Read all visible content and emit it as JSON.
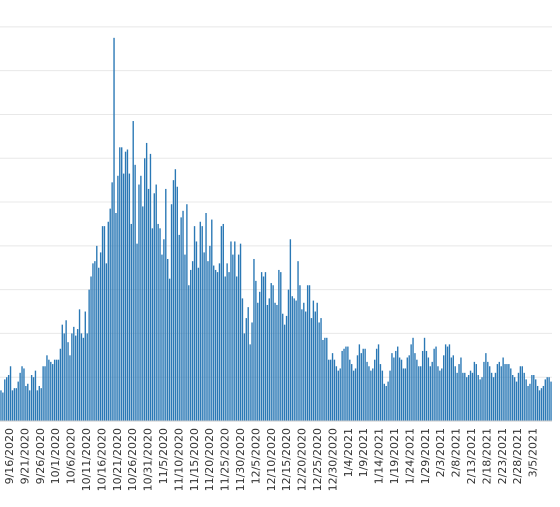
{
  "colors": {
    "bar": "#2a78b5",
    "grid": "#e8e8e8",
    "axis": "#c8c8c8",
    "label": "#333333",
    "background": "#ffffff"
  },
  "chart_data": {
    "type": "bar",
    "title": "",
    "xlabel": "",
    "ylabel": "",
    "ylim": [
      0,
      19
    ],
    "grid": true,
    "legend": "none",
    "x_start": "9/16/2020",
    "x_tick_labels": [
      "9/16/2020",
      "9/21/2020",
      "9/26/2020",
      "10/1/2020",
      "10/6/2020",
      "10/11/2020",
      "10/16/2020",
      "10/21/2020",
      "10/26/2020",
      "10/31/2020",
      "11/5/2020",
      "11/10/2020",
      "11/15/2020",
      "11/20/2020",
      "11/25/2020",
      "11/30/2020",
      "12/5/2020",
      "12/10/2020",
      "12/15/2020",
      "12/20/2020",
      "12/25/2020",
      "12/30/2020",
      "1/4/2021",
      "1/9/2021",
      "1/14/2021",
      "1/19/2021",
      "1/24/2021",
      "1/29/2021",
      "2/3/2021",
      "2/8/2021",
      "2/13/2021",
      "2/18/2021",
      "2/23/2021",
      "2/28/2021",
      "3/5/2021"
    ],
    "values": [
      1.4,
      1.3,
      1.9,
      2.0,
      2.1,
      2.5,
      1.4,
      1.5,
      1.5,
      1.8,
      2.2,
      2.5,
      2.4,
      1.6,
      1.7,
      1.4,
      2.1,
      2.0,
      2.3,
      1.4,
      1.6,
      1.5,
      2.5,
      2.5,
      3.0,
      2.8,
      2.7,
      2.6,
      2.8,
      2.8,
      2.8,
      3.3,
      4.4,
      4.0,
      4.6,
      3.6,
      3.0,
      4.0,
      4.3,
      3.9,
      4.2,
      5.1,
      4.0,
      3.8,
      5.0,
      4.0,
      6.0,
      6.6,
      7.2,
      7.3,
      8.0,
      7.0,
      7.7,
      8.9,
      8.9,
      7.2,
      9.1,
      9.7,
      10.9,
      17.5,
      9.5,
      11.2,
      12.5,
      12.5,
      11.3,
      12.3,
      12.4,
      11.3,
      9.0,
      13.7,
      11.7,
      8.1,
      10.8,
      11.2,
      9.8,
      12.0,
      12.7,
      10.6,
      12.2,
      8.8,
      10.4,
      10.8,
      9.0,
      8.8,
      7.6,
      8.3,
      10.6,
      7.4,
      6.5,
      9.9,
      11.0,
      11.5,
      10.7,
      8.5,
      9.3,
      9.6,
      7.6,
      9.9,
      6.2,
      6.9,
      7.3,
      8.9,
      8.2,
      7.0,
      9.1,
      8.9,
      7.7,
      9.5,
      7.3,
      8.0,
      9.2,
      7.1,
      6.9,
      6.8,
      7.2,
      8.9,
      9.0,
      6.6,
      7.2,
      6.8,
      8.2,
      7.6,
      8.2,
      6.6,
      7.6,
      8.1,
      5.6,
      4.0,
      4.7,
      5.2,
      3.5,
      4.5,
      7.4,
      6.4,
      5.4,
      5.9,
      6.8,
      6.6,
      6.8,
      5.3,
      5.6,
      6.3,
      6.2,
      5.4,
      5.3,
      6.9,
      6.8,
      4.9,
      4.4,
      4.8,
      6.0,
      8.3,
      5.7,
      5.6,
      5.5,
      7.3,
      6.2,
      5.1,
      5.4,
      5.0,
      6.2,
      6.2,
      4.7,
      5.5,
      5.0,
      5.4,
      4.5,
      4.7,
      3.7,
      3.8,
      3.8,
      2.8,
      2.8,
      3.1,
      2.8,
      2.5,
      2.3,
      2.4,
      3.2,
      3.3,
      3.4,
      3.4,
      2.8,
      2.6,
      2.3,
      2.4,
      3.0,
      3.5,
      3.1,
      3.3,
      3.3,
      2.7,
      2.5,
      2.3,
      2.4,
      2.8,
      3.3,
      3.5,
      2.6,
      2.3,
      1.7,
      1.6,
      1.8,
      2.3,
      3.1,
      2.9,
      3.2,
      3.4,
      2.9,
      2.8,
      2.4,
      2.4,
      2.9,
      3.0,
      3.5,
      3.8,
      3.1,
      2.8,
      2.5,
      2.5,
      3.2,
      3.8,
      3.2,
      2.9,
      2.5,
      2.7,
      3.3,
      3.4,
      2.5,
      2.3,
      2.4,
      3.0,
      3.5,
      3.4,
      3.5,
      2.9,
      3.0,
      2.5,
      2.2,
      2.6,
      2.9,
      2.2,
      2.2,
      2.0,
      2.1,
      2.3,
      2.2,
      2.7,
      2.6,
      2.1,
      1.9,
      2.0,
      2.7,
      3.1,
      2.7,
      2.5,
      2.2,
      2.0,
      2.2,
      2.6,
      2.7,
      2.5,
      2.9,
      2.6,
      2.6,
      2.6,
      2.4,
      2.1,
      2.0,
      1.8,
      2.2,
      2.5,
      2.5,
      2.2,
      1.9,
      1.6,
      1.7,
      2.1,
      2.1,
      1.9,
      1.6,
      1.4,
      1.5,
      1.6,
      1.9,
      2.0,
      2.0,
      1.8
    ]
  }
}
